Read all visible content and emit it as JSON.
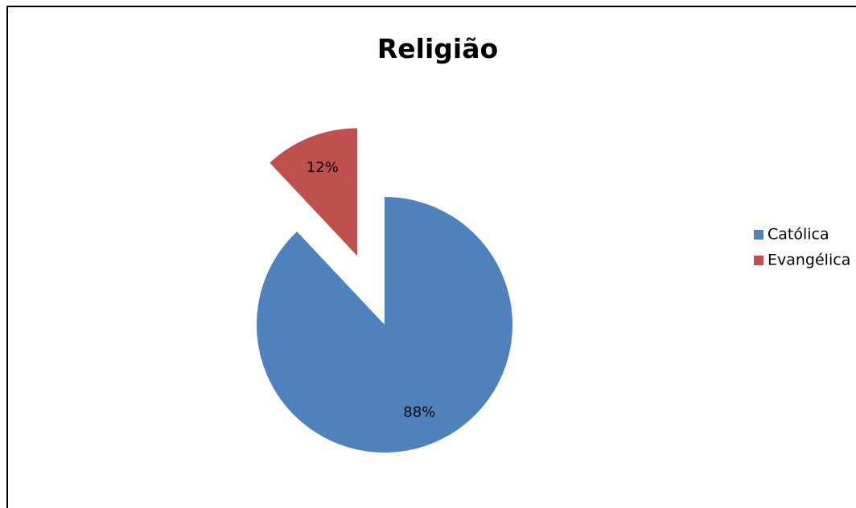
{
  "chart_data": {
    "type": "pie",
    "title": "Religião",
    "categories": [
      "Católica",
      "Evangélica"
    ],
    "values": [
      88,
      12
    ],
    "data_labels": [
      "88%",
      "12%"
    ],
    "colors": [
      "#4F81BD",
      "#C0504D"
    ],
    "exploded": [
      "Evangélica"
    ],
    "legend_position": "right"
  }
}
